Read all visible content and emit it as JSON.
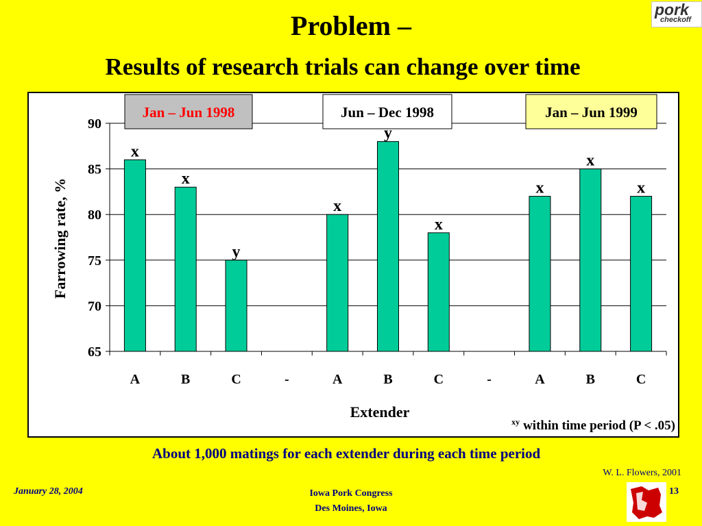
{
  "slide": {
    "title": "Problem –",
    "subtitle": "Results of research trials can change over time",
    "logo_text_1": "pork",
    "logo_text_2": "checkoff",
    "footnote": "About 1,000 matings for each extender during each time period",
    "credit": "W. L. Flowers, 2001",
    "footer_left": "January 28, 2004",
    "footer_center_1": "Iowa Pork Congress",
    "footer_center_2": "Des Moines, Iowa",
    "footer_right": "13"
  },
  "chart_data": {
    "type": "bar",
    "categories": [
      "A",
      "B",
      "C",
      "-",
      "A",
      "B",
      "C",
      "-",
      "A",
      "B",
      "C"
    ],
    "values": [
      86,
      83,
      75,
      null,
      80,
      88,
      78,
      null,
      82,
      85,
      82
    ],
    "bar_labels": [
      "x",
      "x",
      "y",
      "",
      "x",
      "y",
      "x",
      "",
      "x",
      "x",
      "x"
    ],
    "ylim": [
      65,
      90
    ],
    "yticks": [
      65,
      70,
      75,
      80,
      85,
      90
    ],
    "ylabel": "Farrowing rate, %",
    "xlabel": "Extender",
    "grid": true,
    "period_labels": [
      {
        "text": "Jan – Jun 1998",
        "bg": "#c0c0c0",
        "color": "#ff0000"
      },
      {
        "text": "Jun – Dec 1998",
        "bg": "#ffffff",
        "color": "#000000"
      },
      {
        "text": "Jan – Jun 1999",
        "bg": "#ffff99",
        "color": "#000000"
      }
    ],
    "significance_note_sup": "xy",
    "significance_note": "within time period (P < .05)",
    "bar_color": "#00cc99"
  }
}
